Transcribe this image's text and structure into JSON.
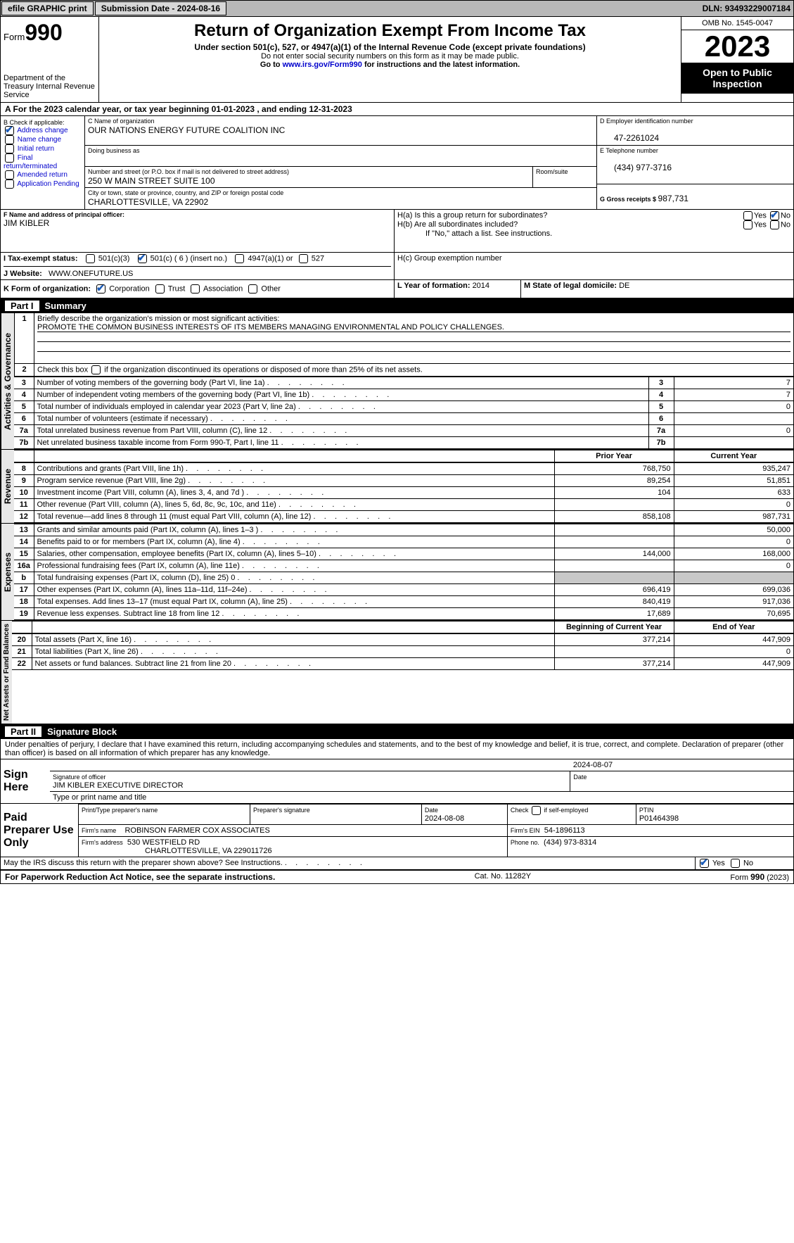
{
  "topbar": {
    "efile": "efile GRAPHIC print",
    "submission_label": "Submission Date - ",
    "submission_date": "2024-08-16",
    "dln_label": "DLN: ",
    "dln": "93493229007184"
  },
  "header": {
    "form_prefix": "Form",
    "form_number": "990",
    "dept": "Department of the Treasury Internal Revenue Service",
    "title": "Return of Organization Exempt From Income Tax",
    "sub1": "Under section 501(c), 527, or 4947(a)(1) of the Internal Revenue Code (except private foundations)",
    "sub2": "Do not enter social security numbers on this form as it may be made public.",
    "sub3_prefix": "Go to ",
    "sub3_link": "www.irs.gov/Form990",
    "sub3_suffix": " for instructions and the latest information.",
    "omb": "OMB No. 1545-0047",
    "year": "2023",
    "public": "Open to Public Inspection"
  },
  "yearline": "A  For the 2023 calendar year, or tax year beginning 01-01-2023    , and ending 12-31-2023",
  "sectionB": {
    "label": "B Check if applicable:",
    "opts": {
      "address_change": "Address change",
      "name_change": "Name change",
      "initial_return": "Initial return",
      "final_return": "Final return/terminated",
      "amended": "Amended return",
      "app_pending": "Application Pending"
    }
  },
  "sectionC": {
    "name_label": "C Name of organization",
    "name": "OUR NATIONS ENERGY FUTURE COALITION INC",
    "dba_label": "Doing business as",
    "dba": "",
    "street_label": "Number and street (or P.O. box if mail is not delivered to street address)",
    "street": "250 W MAIN STREET SUITE 100",
    "room_label": "Room/suite",
    "city_label": "City or town, state or province, country, and ZIP or foreign postal code",
    "city": "CHARLOTTESVILLE, VA  22902"
  },
  "sectionD": {
    "label": "D Employer identification number",
    "value": "47-2261024"
  },
  "sectionE": {
    "label": "E Telephone number",
    "value": "(434) 977-3716"
  },
  "sectionG": {
    "label": "G Gross receipts $ ",
    "value": "987,731"
  },
  "sectionF": {
    "label": "F  Name and address of principal officer:",
    "name": "JIM KIBLER"
  },
  "sectionH": {
    "a": "H(a)  Is this a group return for subordinates?",
    "b": "H(b)  Are all subordinates included?",
    "note": "If \"No,\" attach a list. See instructions.",
    "c": "H(c)  Group exemption number",
    "yes": "Yes",
    "no": "No"
  },
  "sectionI": {
    "label": "I    Tax-exempt status:",
    "o1": "501(c)(3)",
    "o2": "501(c) ( 6 ) (insert no.)",
    "o3": "4947(a)(1) or",
    "o4": "527"
  },
  "sectionJ": {
    "label": "J    Website:",
    "value": "WWW.ONEFUTURE.US"
  },
  "sectionK": {
    "label": "K Form of organization:",
    "o1": "Corporation",
    "o2": "Trust",
    "o3": "Association",
    "o4": "Other"
  },
  "sectionL": {
    "label": "L Year of formation: ",
    "value": "2014"
  },
  "sectionM": {
    "label": "M State of legal domicile: ",
    "value": "DE"
  },
  "partI": {
    "title": "Part I",
    "subtitle": "Summary",
    "v_gov": "Activities & Governance",
    "v_rev": "Revenue",
    "v_exp": "Expenses",
    "v_net": "Net Assets or Fund Balances",
    "line1_label": "Briefly describe the organization's mission or most significant activities:",
    "line1_val": "PROMOTE THE COMMON BUSINESS INTERESTS OF ITS MEMBERS MANAGING ENVIRONMENTAL AND POLICY CHALLENGES.",
    "line2": "Check this box        if the organization discontinued its operations or disposed of more than 25% of its net assets.",
    "lines_gov": [
      {
        "n": "3",
        "t": "Number of voting members of the governing body (Part VI, line 1a)",
        "v": "7"
      },
      {
        "n": "4",
        "t": "Number of independent voting members of the governing body (Part VI, line 1b)",
        "v": "7"
      },
      {
        "n": "5",
        "t": "Total number of individuals employed in calendar year 2023 (Part V, line 2a)",
        "v": "0"
      },
      {
        "n": "6",
        "t": "Total number of volunteers (estimate if necessary)",
        "v": ""
      },
      {
        "n": "7a",
        "t": "Total unrelated business revenue from Part VIII, column (C), line 12",
        "v": "0"
      },
      {
        "n": "7b",
        "t": "Net unrelated business taxable income from Form 990-T, Part I, line 11",
        "v": ""
      }
    ],
    "hdr_prior": "Prior Year",
    "hdr_curr": "Current Year",
    "lines_rev": [
      {
        "n": "8",
        "t": "Contributions and grants (Part VIII, line 1h)",
        "p": "768,750",
        "c": "935,247"
      },
      {
        "n": "9",
        "t": "Program service revenue (Part VIII, line 2g)",
        "p": "89,254",
        "c": "51,851"
      },
      {
        "n": "10",
        "t": "Investment income (Part VIII, column (A), lines 3, 4, and 7d )",
        "p": "104",
        "c": "633"
      },
      {
        "n": "11",
        "t": "Other revenue (Part VIII, column (A), lines 5, 6d, 8c, 9c, 10c, and 11e)",
        "p": "",
        "c": "0"
      },
      {
        "n": "12",
        "t": "Total revenue—add lines 8 through 11 (must equal Part VIII, column (A), line 12)",
        "p": "858,108",
        "c": "987,731"
      }
    ],
    "lines_exp": [
      {
        "n": "13",
        "t": "Grants and similar amounts paid (Part IX, column (A), lines 1–3 )",
        "p": "",
        "c": "50,000"
      },
      {
        "n": "14",
        "t": "Benefits paid to or for members (Part IX, column (A), line 4)",
        "p": "",
        "c": "0"
      },
      {
        "n": "15",
        "t": "Salaries, other compensation, employee benefits (Part IX, column (A), lines 5–10)",
        "p": "144,000",
        "c": "168,000"
      },
      {
        "n": "16a",
        "t": "Professional fundraising fees (Part IX, column (A), line 11e)",
        "p": "",
        "c": "0"
      },
      {
        "n": "b",
        "t": "Total fundraising expenses (Part IX, column (D), line 25) 0",
        "p": "shade",
        "c": "shade"
      },
      {
        "n": "17",
        "t": "Other expenses (Part IX, column (A), lines 11a–11d, 11f–24e)",
        "p": "696,419",
        "c": "699,036"
      },
      {
        "n": "18",
        "t": "Total expenses. Add lines 13–17 (must equal Part IX, column (A), line 25)",
        "p": "840,419",
        "c": "917,036"
      },
      {
        "n": "19",
        "t": "Revenue less expenses. Subtract line 18 from line 12",
        "p": "17,689",
        "c": "70,695"
      }
    ],
    "hdr_beg": "Beginning of Current Year",
    "hdr_end": "End of Year",
    "lines_net": [
      {
        "n": "20",
        "t": "Total assets (Part X, line 16)",
        "p": "377,214",
        "c": "447,909"
      },
      {
        "n": "21",
        "t": "Total liabilities (Part X, line 26)",
        "p": "",
        "c": "0"
      },
      {
        "n": "22",
        "t": "Net assets or fund balances. Subtract line 21 from line 20",
        "p": "377,214",
        "c": "447,909"
      }
    ]
  },
  "partII": {
    "title": "Part II",
    "subtitle": "Signature Block",
    "perjury": "Under penalties of perjury, I declare that I have examined this return, including accompanying schedules and statements, and to the best of my knowledge and belief, it is true, correct, and complete. Declaration of preparer (other than officer) is based on all information of which preparer has any knowledge.",
    "sign_here": "Sign Here",
    "sig_date": "2024-08-07",
    "sig_label": "Signature of officer",
    "officer": "JIM KIBLER EXECUTIVE DIRECTOR",
    "type_label": "Type or print name and title",
    "date_label": "Date",
    "paid": "Paid Preparer Use Only",
    "prep_name_label": "Print/Type preparer's name",
    "prep_sig_label": "Preparer's signature",
    "prep_date_label": "Date",
    "prep_date": "2024-08-08",
    "self_emp": "Check       if self-employed",
    "ptin_label": "PTIN",
    "ptin": "P01464398",
    "firm_name_label": "Firm's name",
    "firm_name": "ROBINSON FARMER COX ASSOCIATES",
    "firm_ein_label": "Firm's EIN",
    "firm_ein": "54-1896113",
    "firm_addr_label": "Firm's address",
    "firm_addr1": "530 WESTFIELD RD",
    "firm_addr2": "CHARLOTTESVILLE, VA  229011726",
    "firm_phone_label": "Phone no.",
    "firm_phone": "(434) 973-8314",
    "discuss": "May the IRS discuss this return with the preparer shown above? See Instructions."
  },
  "footer": {
    "left": "For Paperwork Reduction Act Notice, see the separate instructions.",
    "mid": "Cat. No. 11282Y",
    "right_prefix": "Form ",
    "right_form": "990",
    "right_year": " (2023)"
  }
}
